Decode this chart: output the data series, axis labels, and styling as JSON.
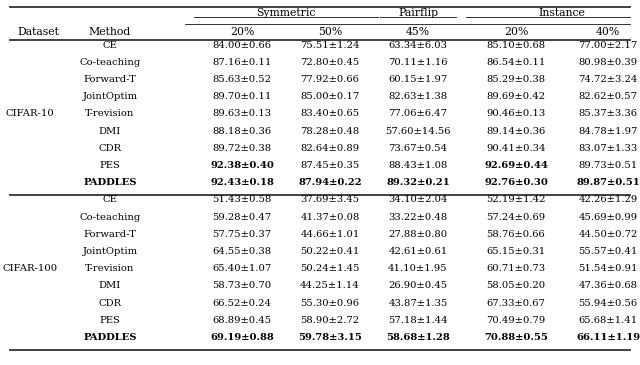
{
  "cifar10_rows": [
    [
      "CE",
      "84.00±0.66",
      "75.51±1.24",
      "63.34±6.03",
      "85.10±0.68",
      "77.00±2.17"
    ],
    [
      "Co-teaching",
      "87.16±0.11",
      "72.80±0.45",
      "70.11±1.16",
      "86.54±0.11",
      "80.98±0.39"
    ],
    [
      "Forward-T",
      "85.63±0.52",
      "77.92±0.66",
      "60.15±1.97",
      "85.29±0.38",
      "74.72±3.24"
    ],
    [
      "JointOptim",
      "89.70±0.11",
      "85.00±0.17",
      "82.63±1.38",
      "89.69±0.42",
      "82.62±0.57"
    ],
    [
      "T-revision",
      "89.63±0.13",
      "83.40±0.65",
      "77.06±6.47",
      "90.46±0.13",
      "85.37±3.36"
    ],
    [
      "DMI",
      "88.18±0.36",
      "78.28±0.48",
      "57.60±14.56",
      "89.14±0.36",
      "84.78±1.97"
    ],
    [
      "CDR",
      "89.72±0.38",
      "82.64±0.89",
      "73.67±0.54",
      "90.41±0.34",
      "83.07±1.33"
    ],
    [
      "PES",
      "92.38±0.40",
      "87.45±0.35",
      "88.43±1.08",
      "92.69±0.44",
      "89.73±0.51"
    ],
    [
      "PADDLES",
      "92.43±0.18",
      "87.94±0.22",
      "89.32±0.21",
      "92.76±0.30",
      "89.87±0.51"
    ]
  ],
  "cifar100_rows": [
    [
      "CE",
      "51.43±0.58",
      "37.69±3.45",
      "34.10±2.04",
      "52.19±1.42",
      "42.26±1.29"
    ],
    [
      "Co-teaching",
      "59.28±0.47",
      "41.37±0.08",
      "33.22±0.48",
      "57.24±0.69",
      "45.69±0.99"
    ],
    [
      "Forward-T",
      "57.75±0.37",
      "44.66±1.01",
      "27.88±0.80",
      "58.76±0.66",
      "44.50±0.72"
    ],
    [
      "JointOptim",
      "64.55±0.38",
      "50.22±0.41",
      "42.61±0.61",
      "65.15±0.31",
      "55.57±0.41"
    ],
    [
      "T-revision",
      "65.40±1.07",
      "50.24±1.45",
      "41.10±1.95",
      "60.71±0.73",
      "51.54±0.91"
    ],
    [
      "DMI",
      "58.73±0.70",
      "44.25±1.14",
      "26.90±0.45",
      "58.05±0.20",
      "47.36±0.68"
    ],
    [
      "CDR",
      "66.52±0.24",
      "55.30±0.96",
      "43.87±1.35",
      "67.33±0.67",
      "55.94±0.56"
    ],
    [
      "PES",
      "68.89±0.45",
      "58.90±2.72",
      "57.18±1.44",
      "70.49±0.79",
      "65.68±1.41"
    ],
    [
      "PADDLES",
      "69.19±0.88",
      "59.78±3.15",
      "58.68±1.28",
      "70.88±0.55",
      "66.11±1.19"
    ]
  ],
  "bold_cifar10": [
    [
      7,
      1
    ],
    [
      7,
      4
    ],
    [
      8,
      0
    ],
    [
      8,
      1
    ],
    [
      8,
      2
    ],
    [
      8,
      3
    ],
    [
      8,
      4
    ],
    [
      8,
      5
    ]
  ],
  "bold_cifar100": [
    [
      8,
      0
    ],
    [
      8,
      1
    ],
    [
      8,
      2
    ],
    [
      8,
      3
    ],
    [
      8,
      4
    ],
    [
      8,
      5
    ]
  ],
  "bg_color": "#ffffff",
  "font_size": 7.2,
  "header_font_size": 7.8
}
